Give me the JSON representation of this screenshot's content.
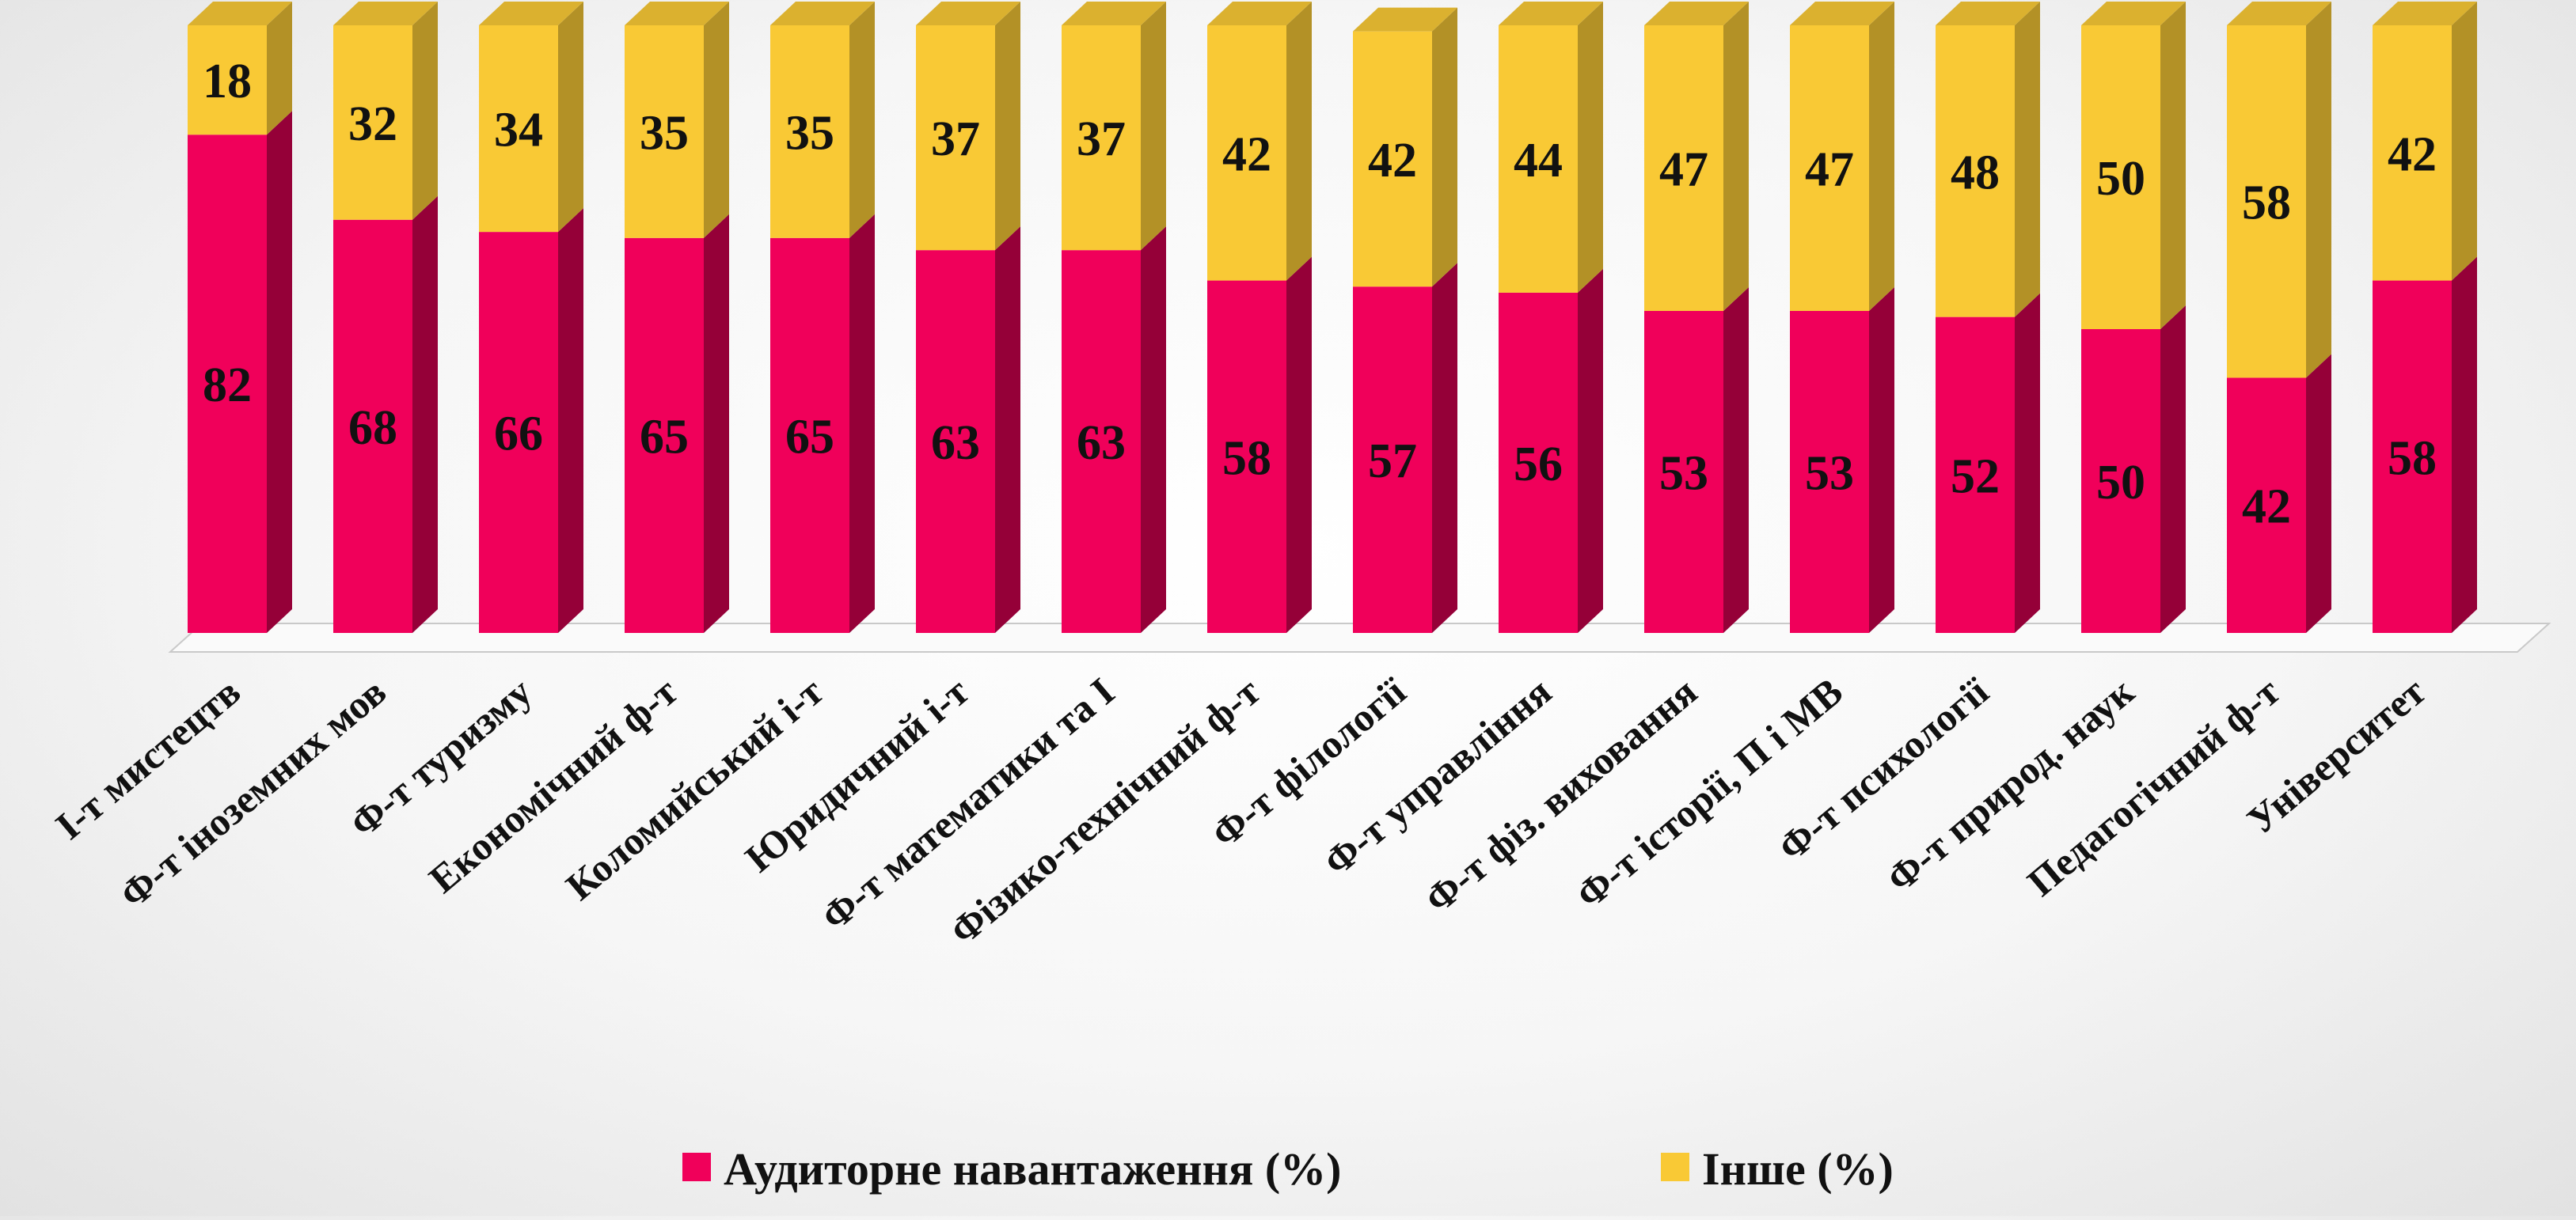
{
  "chart_data": {
    "type": "bar",
    "stacked": true,
    "three_d": true,
    "title": "",
    "xlabel": "",
    "ylabel": "",
    "ylim": [
      0,
      100
    ],
    "grid": false,
    "legend_position": "bottom",
    "categories": [
      "І-т мистецтв",
      "Ф-т іноземних мов",
      "Ф-т туризму",
      "Економічний ф-т",
      "Коломийський і-т",
      "Юридичний і-т",
      "Ф-т математики та І",
      "Фізико-технічний ф-т",
      "Ф-т філології",
      "Ф-т управління",
      "Ф-т фіз. виховання",
      "Ф-т історії, П і МВ",
      "Ф-т психології",
      "Ф-т природ. наук",
      "Педагогічний ф-т",
      "Університет"
    ],
    "series": [
      {
        "name": "Аудиторне навантаження (%)",
        "color": "#F0005A",
        "values": [
          82,
          68,
          66,
          65,
          65,
          63,
          63,
          58,
          57,
          56,
          53,
          53,
          52,
          50,
          42,
          58
        ]
      },
      {
        "name": "Інше (%)",
        "color": "#F9C935",
        "values": [
          18,
          32,
          34,
          35,
          35,
          37,
          37,
          42,
          42,
          44,
          47,
          47,
          48,
          50,
          58,
          42
        ]
      }
    ]
  }
}
